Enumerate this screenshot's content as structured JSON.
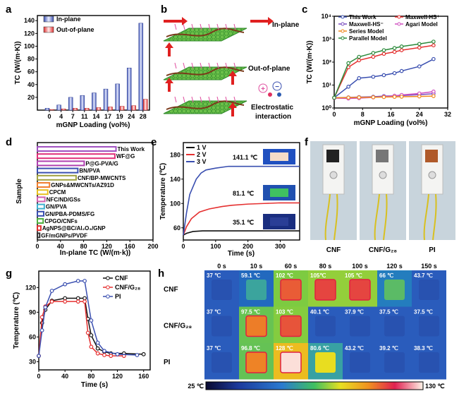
{
  "panel_labels": {
    "a": "a",
    "b": "b",
    "c": "c",
    "d": "d",
    "e": "e",
    "f": "f",
    "g": "g",
    "h": "h"
  },
  "illustration_b": {
    "in_plane": "In-plane",
    "out_of_plane": "Out-of-plane",
    "electrostatic_1": "Electrostatic",
    "electrostatic_2": "interaction",
    "plus": "+",
    "minus": "−"
  },
  "photos_f": {
    "labels": [
      "CNF",
      "CNF/G₂₈",
      "PI"
    ]
  },
  "chart_data": [
    {
      "type": "bar",
      "panel": "a",
      "categories": [
        "0",
        "4",
        "7",
        "11",
        "14",
        "17",
        "19",
        "24",
        "28"
      ],
      "series": [
        {
          "name": "In-plane",
          "values": [
            3,
            8,
            20,
            23,
            27,
            33,
            41,
            66,
            136
          ],
          "color": "#3a4fb0"
        },
        {
          "name": "Out-of-plane",
          "values": [
            1,
            2,
            3,
            3,
            4,
            5,
            6,
            7,
            17
          ],
          "color": "#e03030"
        }
      ],
      "xlabel": "mGNP Loading  (vol%)",
      "ylabel": "TC (W/(m·K))",
      "ylim": [
        0,
        148
      ],
      "yticks": [
        20,
        40,
        60,
        80,
        100,
        120,
        140
      ],
      "legend": "top-left"
    },
    {
      "type": "line",
      "panel": "c",
      "x": [
        0,
        4,
        7,
        11,
        14,
        17,
        19,
        24,
        28
      ],
      "series": [
        {
          "name": "This Work",
          "values": [
            2.8,
            8.5,
            20,
            23,
            27,
            33,
            41,
            65,
            136
          ],
          "color": "#3a4fb0"
        },
        {
          "name": "Maxwell-HS⁺",
          "values": [
            2.8,
            60,
            120,
            170,
            230,
            280,
            330,
            430,
            540
          ],
          "color": "#e53030"
        },
        {
          "name": "Maxwell-HS⁻",
          "values": [
            2.8,
            2.9,
            3.0,
            3.1,
            3.3,
            3.4,
            3.5,
            3.8,
            4.2
          ],
          "color": "#7b4fc0"
        },
        {
          "name": "Agari Model",
          "values": [
            2.7,
            2.6,
            2.7,
            2.9,
            3.1,
            3.4,
            3.7,
            4.3,
            5.2
          ],
          "color": "#d050c0"
        },
        {
          "name": "Series Model",
          "values": [
            2.8,
            2.85,
            2.9,
            2.95,
            3.0,
            3.05,
            3.1,
            3.2,
            3.3
          ],
          "color": "#f08a20"
        },
        {
          "name": "Parallel Model",
          "values": [
            2.8,
            90,
            170,
            250,
            330,
            410,
            480,
            620,
            780
          ],
          "color": "#2a8a3a"
        }
      ],
      "xlabel": "mGNP Loading  (vol%)",
      "ylabel": "TC (W/(m·K))",
      "xlim": [
        0,
        32
      ],
      "ylim": [
        1,
        10000
      ],
      "yscale": "log",
      "xticks": [
        "0",
        "8",
        "16",
        "24",
        "32"
      ],
      "yticks": [
        "10⁰",
        "10¹",
        "10²",
        "10³",
        "10⁴"
      ],
      "legend": "top"
    },
    {
      "type": "bar",
      "panel": "d",
      "orientation": "horizontal",
      "categories": [
        "This Work",
        "WF@G",
        "P@G-PVA/G",
        "BN/PVA",
        "CNF/BP-MWCNTS",
        "GNPs&MWCNTs/AZ91D",
        "CPCM",
        "NFC/ND/GSs",
        "GN/PVA",
        "GN/PBA-PDMS/FG",
        "CPGO/CNFs",
        "AgNPS@BC/Al₂O₃/GNP",
        "GF/mGNPs/PVDF"
      ],
      "values": [
        136,
        134,
        81,
        70,
        67,
        21,
        18,
        13,
        12,
        11,
        10,
        6,
        4
      ],
      "colors": [
        "#a050c0",
        "#e0307a",
        "#b040b0",
        "#3a4fb0",
        "#a0a040",
        "#f08030",
        "#e8c020",
        "#d060b0",
        "#40b0d0",
        "#3a4fb0",
        "#50b040",
        "#e03030",
        "#333333"
      ],
      "xlabel": "In-plane TC (W/(m·k))",
      "ylabel": "Sample",
      "xlim": [
        0,
        200
      ],
      "xticks": [
        0,
        40,
        80,
        120,
        160,
        200
      ]
    },
    {
      "type": "line",
      "panel": "e",
      "series": [
        {
          "name": "1 V",
          "color": "#111111",
          "x": [
            0,
            10,
            30,
            60,
            100,
            200,
            360
          ],
          "values": [
            48,
            51,
            54,
            55,
            55,
            55,
            55
          ]
        },
        {
          "name": "2 V",
          "color": "#e53030",
          "x": [
            0,
            10,
            25,
            50,
            80,
            120,
            150,
            200,
            250,
            300,
            360
          ],
          "values": [
            48,
            62,
            75,
            86,
            91,
            95,
            97,
            99,
            100,
            101,
            101
          ]
        },
        {
          "name": "3 V",
          "color": "#3a4fb0",
          "x": [
            0,
            10,
            20,
            40,
            55,
            70,
            100,
            140,
            200,
            300,
            360
          ],
          "values": [
            48,
            85,
            115,
            140,
            150,
            155,
            158,
            161,
            161,
            161,
            161
          ]
        }
      ],
      "annotations": [
        "141.1 ℃",
        "81.1 ℃",
        "35.1 ℃"
      ],
      "xlabel": "Time  (s)",
      "ylabel": "Temperature (℃)",
      "xlim": [
        0,
        360
      ],
      "ylim": [
        40,
        200
      ],
      "xticks": [
        0,
        100,
        200,
        300
      ],
      "yticks": [
        60,
        100,
        140,
        180
      ],
      "legend": "top-left"
    },
    {
      "type": "line",
      "panel": "g",
      "series": [
        {
          "name": "CNF",
          "color": "#111111",
          "x": [
            0,
            5,
            10,
            20,
            40,
            60,
            70,
            75,
            80,
            90,
            100,
            110,
            130,
            160
          ],
          "values": [
            37,
            77,
            93,
            104,
            107,
            107,
            107,
            82,
            62,
            46,
            42,
            40,
            40,
            39
          ]
        },
        {
          "name": "CNF/G₂₈",
          "color": "#e53030",
          "x": [
            0,
            5,
            10,
            20,
            40,
            60,
            70,
            75,
            80,
            90,
            100,
            110,
            130
          ],
          "values": [
            37,
            84,
            97,
            103,
            103,
            103,
            103,
            65,
            48,
            40,
            38,
            37,
            37
          ]
        },
        {
          "name": "PI",
          "color": "#3a4fb0",
          "x": [
            0,
            5,
            10,
            20,
            40,
            60,
            70,
            80,
            90,
            100,
            120,
            150
          ],
          "values": [
            37,
            68,
            96,
            116,
            124,
            128,
            128,
            80,
            53,
            43,
            39,
            38
          ]
        }
      ],
      "xlabel": "Time (s)",
      "ylabel": "Temperature (℃)",
      "xlim": [
        0,
        170
      ],
      "ylim": [
        20,
        140
      ],
      "xticks": [
        0,
        40,
        80,
        120,
        160
      ],
      "yticks": [
        30,
        60,
        90,
        120
      ],
      "legend": "top-right"
    },
    {
      "type": "heatmap",
      "panel": "h",
      "columns": [
        "0 s",
        "10 s",
        "60 s",
        "80 s",
        "100 s",
        "120 s",
        "150 s"
      ],
      "rows": [
        "CNF",
        "CNF/G₂₈",
        "PI"
      ],
      "labels": [
        [
          "37 ℃",
          "59.1 ℃",
          "102 ℃",
          "105℃",
          "105 ℃",
          "66 ℃",
          "43.7 ℃"
        ],
        [
          "37 ℃",
          "97.5 ℃",
          "103 ℃",
          "40.1 ℃",
          "37.9 ℃",
          "37.5 ℃",
          "37.5 ℃"
        ],
        [
          "37 ℃",
          "96.8 ℃",
          "128 ℃",
          "80.6 ℃",
          "43.2 ℃",
          "39.2 ℃",
          "38.3 ℃"
        ]
      ],
      "values": [
        [
          37,
          59.1,
          102,
          105,
          105,
          66,
          43.7
        ],
        [
          37,
          97.5,
          103,
          40.1,
          37.9,
          37.5,
          37.5
        ],
        [
          37,
          96.8,
          128,
          80.6,
          43.2,
          39.2,
          38.3
        ]
      ],
      "colorbar": {
        "min_label": "25 ℃",
        "max_label": "130 ℃",
        "min": 25,
        "max": 130
      }
    }
  ]
}
